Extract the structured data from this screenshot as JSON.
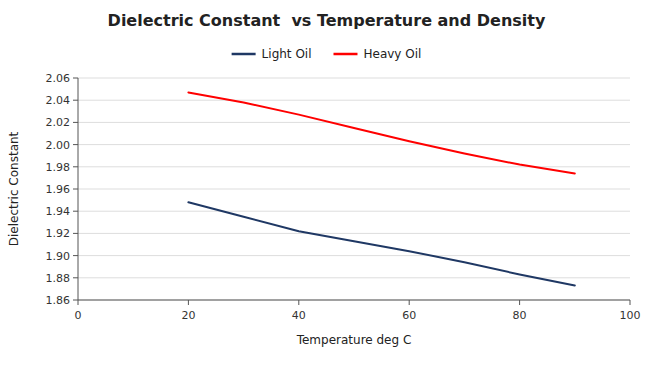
{
  "chart_data": {
    "type": "line",
    "title": "Dielectric Constant  vs Temperature and Density",
    "x_label": "Temperature deg C",
    "y_label": "Dielectric Constant",
    "x": [
      20,
      30,
      40,
      50,
      60,
      70,
      80,
      90
    ],
    "series": [
      {
        "name": "Light Oil",
        "color": "#1F3864",
        "values": [
          1.948,
          1.935,
          1.922,
          1.913,
          1.904,
          1.894,
          1.883,
          1.873
        ]
      },
      {
        "name": "Heavy Oil",
        "color": "#FF0000",
        "values": [
          2.047,
          2.038,
          2.027,
          2.015,
          2.003,
          1.992,
          1.982,
          1.974
        ]
      }
    ],
    "xlim": [
      0,
      100
    ],
    "ylim": [
      1.86,
      2.06
    ],
    "xticks": [
      0,
      20,
      40,
      60,
      80,
      100
    ],
    "yticks": [
      1.86,
      1.88,
      {
        "value": 1.9,
        "label": "1.90"
      },
      1.92,
      1.94,
      1.96,
      1.98,
      {
        "value": 2.0,
        "label": "2.00"
      },
      2.02,
      2.04,
      2.06
    ],
    "grid": true,
    "legend": "top"
  }
}
